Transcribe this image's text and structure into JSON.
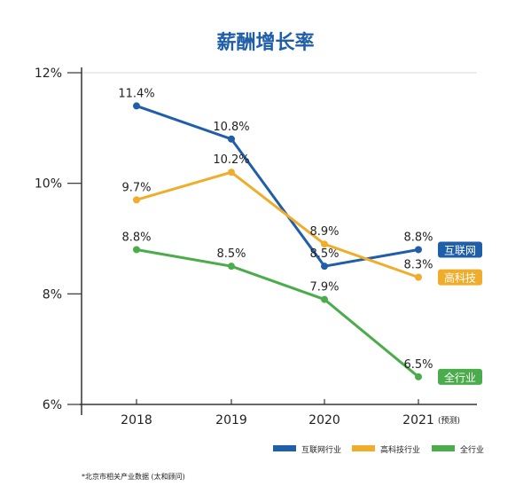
{
  "chart_data": {
    "type": "line",
    "title": "薪酬增长率",
    "categories": [
      "2018",
      "2019",
      "2020",
      "2021"
    ],
    "category_note": {
      "index": 3,
      "text": "(预测)"
    },
    "ylim": [
      6,
      12
    ],
    "yticks": [
      6,
      8,
      10,
      12
    ],
    "ytick_labels": [
      "6%",
      "8%",
      "10%",
      "12%"
    ],
    "grid": "top-line-only",
    "series": [
      {
        "name": "互联网行业",
        "end_label": "互联网",
        "color": "#1f5ea8",
        "values": [
          11.4,
          10.8,
          8.5,
          8.8
        ],
        "labels": [
          "11.4%",
          "10.8%",
          "8.5%",
          "8.8%"
        ]
      },
      {
        "name": "高科技行业",
        "end_label": "高科技",
        "color": "#f0ad2c",
        "values": [
          9.7,
          10.2,
          8.9,
          8.3
        ],
        "labels": [
          "9.7%",
          "10.2%",
          "8.9%",
          "8.3%"
        ]
      },
      {
        "name": "全行业",
        "end_label": "全行业",
        "color": "#4aac4a",
        "values": [
          8.8,
          8.5,
          7.9,
          6.5
        ],
        "labels": [
          "8.8%",
          "8.5%",
          "7.9%",
          "6.5%"
        ]
      }
    ],
    "legend_position": "bottom-right"
  },
  "footnote": "*北京市相关产业数据 (太和顾问)"
}
